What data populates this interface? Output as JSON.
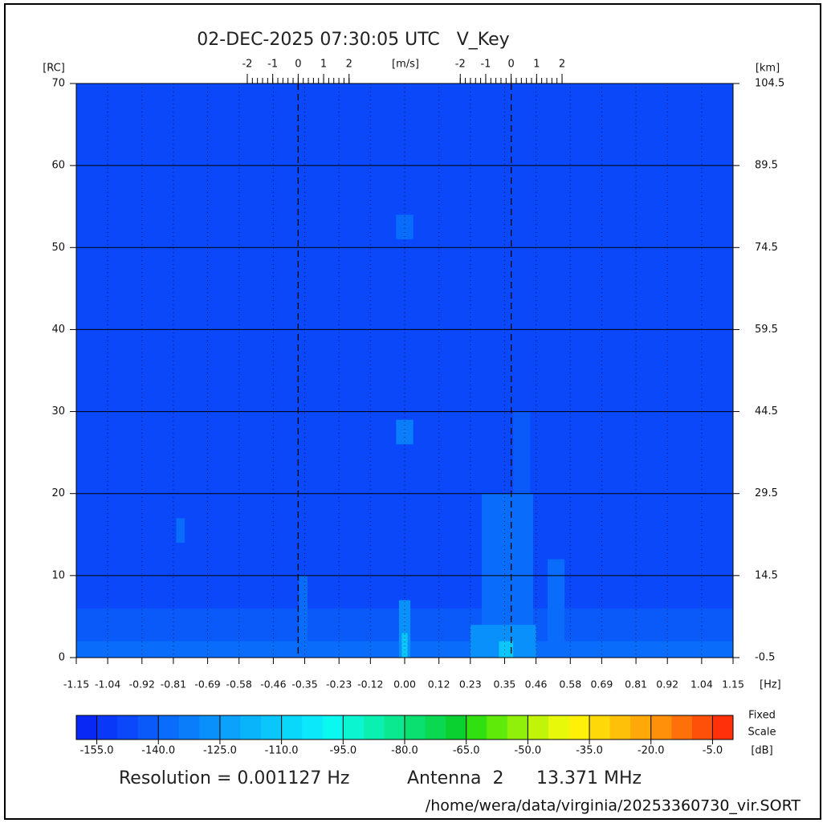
{
  "chart_data": {
    "type": "heatmap",
    "title": "02-DEC-2025 07:30:05 UTC   V_Key",
    "ylabel": "[RC]",
    "y2label": "[km]",
    "xlabel": "[Hz]",
    "velocity_label": "[m/s]",
    "xlim": [
      -1.15,
      1.15
    ],
    "xticks": [
      -1.15,
      -1.04,
      -0.92,
      -0.81,
      -0.69,
      -0.58,
      -0.46,
      -0.35,
      -0.23,
      -0.12,
      {
        "value": 0,
        "label": "0.00"
      },
      0.12,
      0.23,
      0.35,
      0.46,
      0.58,
      0.69,
      0.81,
      0.92,
      1.04,
      1.15
    ],
    "ylim": [
      0,
      70
    ],
    "yticks": [
      0,
      10,
      20,
      30,
      40,
      50,
      60,
      70
    ],
    "y2lim": [
      -0.5,
      104.5
    ],
    "y2ticks": [
      -0.5,
      14.5,
      29.5,
      44.5,
      59.5,
      74.5,
      89.5,
      104.5
    ],
    "grid": true,
    "velocity_scales": [
      {
        "xlim": [
          -8.72,
          17.09
        ],
        "ticks": [
          -2,
          -1,
          0,
          1,
          2
        ]
      },
      {
        "xlim": [
          -17.09,
          8.72
        ],
        "ticks": [
          -2,
          -1,
          0,
          1,
          2
        ]
      }
    ],
    "background": -150,
    "cells": [
      {
        "x": [
          -1.15,
          1.15
        ],
        "y": [
          0,
          6
        ],
        "value": -142
      },
      {
        "x": [
          -1.15,
          1.15
        ],
        "y": [
          0,
          2
        ],
        "value": -137
      },
      {
        "x": [
          -0.37,
          -0.34
        ],
        "y": [
          0,
          10
        ],
        "value": -137
      },
      {
        "x": [
          -0.02,
          0.02
        ],
        "y": [
          0,
          7
        ],
        "value": -130
      },
      {
        "x": [
          -0.01,
          0.01
        ],
        "y": [
          0,
          3
        ],
        "value": -115
      },
      {
        "x": [
          -0.03,
          0.03
        ],
        "y": [
          26,
          29
        ],
        "value": -135
      },
      {
        "x": [
          -0.03,
          0.03
        ],
        "y": [
          51,
          54
        ],
        "value": -140
      },
      {
        "x": [
          -0.8,
          -0.77
        ],
        "y": [
          14,
          17
        ],
        "value": -140
      },
      {
        "x": [
          0.27,
          0.45
        ],
        "y": [
          0,
          20
        ],
        "value": -140
      },
      {
        "x": [
          0.38,
          0.44
        ],
        "y": [
          20,
          30
        ],
        "value": -142
      },
      {
        "x": [
          0.5,
          0.56
        ],
        "y": [
          0,
          12
        ],
        "value": -140
      },
      {
        "x": [
          0.23,
          0.46
        ],
        "y": [
          0,
          4
        ],
        "value": -127
      },
      {
        "x": [
          0.33,
          0.38
        ],
        "y": [
          0,
          2
        ],
        "value": -112
      }
    ],
    "clim": [
      -160,
      0
    ],
    "colormap": [
      "#0a28f5",
      "#0a38f8",
      "#0a48fa",
      "#0a5afa",
      "#0a6cfa",
      "#0a7efa",
      "#0a90fa",
      "#0aa2fa",
      "#0ab4fa",
      "#0ac6fa",
      "#0ad8fa",
      "#0ae8fa",
      "#0af8f0",
      "#0af5d0",
      "#0af0b0",
      "#0ae890",
      "#0ae070",
      "#0ad850",
      "#0ad030",
      "#30e010",
      "#60ea0a",
      "#90f00a",
      "#c0f50a",
      "#e8f80a",
      "#fff00a",
      "#ffd80a",
      "#ffc00a",
      "#ffa80a",
      "#ff900a",
      "#ff700a",
      "#ff500a",
      "#ff300a"
    ],
    "cticks": [
      {
        "value": -155,
        "label": "-155.0"
      },
      {
        "value": -140,
        "label": "-140.0"
      },
      {
        "value": -125,
        "label": "-125.0"
      },
      {
        "value": -110,
        "label": "-110.0"
      },
      {
        "value": -95,
        "label": "-95.0"
      },
      {
        "value": -80,
        "label": "-80.0"
      },
      {
        "value": -65,
        "label": "-65.0"
      },
      {
        "value": -50,
        "label": "-50.0"
      },
      {
        "value": -35,
        "label": "-35.0"
      },
      {
        "value": -20,
        "label": "-20.0"
      },
      {
        "value": -5,
        "label": "-5.0"
      }
    ],
    "colorbar_label": [
      "Fixed",
      "Scale",
      "[dB]"
    ],
    "footer": {
      "resolution": "Resolution = 0.001127 Hz",
      "antenna": "Antenna  2",
      "frequency": "13.371 MHz"
    },
    "file": "/home/wera/data/virginia/20253360730_vir.SORT"
  }
}
